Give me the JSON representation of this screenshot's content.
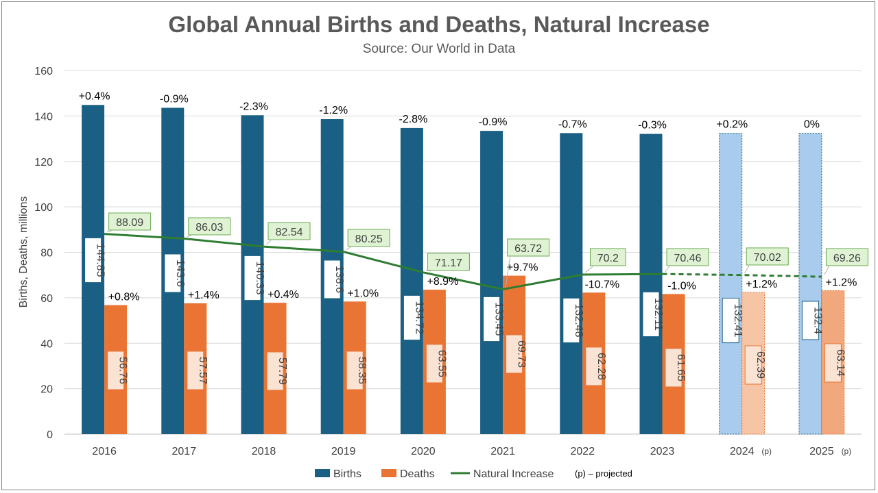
{
  "chart_data": {
    "type": "bar",
    "title": "Global Annual Births and Deaths, Natural Increase",
    "subtitle": "Source: Our World in Data",
    "ylabel": "Births, Deaths, millions",
    "xlabel": "",
    "ylim": [
      0,
      160
    ],
    "yticks": [
      0,
      20,
      40,
      60,
      80,
      100,
      120,
      140,
      160
    ],
    "grid": true,
    "legend_position": "bottom",
    "categories": [
      "2016",
      "2017",
      "2018",
      "2019",
      "2020",
      "2021",
      "2022",
      "2023",
      "2024",
      "2025"
    ],
    "projected": [
      false,
      false,
      false,
      false,
      false,
      false,
      false,
      false,
      true,
      true
    ],
    "projected_suffix": "(p)",
    "series": [
      {
        "name": "Births",
        "type": "bar",
        "color": "#1a5f84",
        "projected_color": "#a9cbee",
        "values": [
          144.85,
          143.6,
          140.33,
          138.6,
          134.72,
          133.45,
          132.48,
          132.11,
          132.41,
          132.4
        ],
        "value_labels": [
          "144.85",
          "143.6",
          "140.33",
          "138.6",
          "134.72",
          "133.45",
          "132.48",
          "132.11",
          "132.41",
          "132.4"
        ],
        "change_labels": [
          "+0.4%",
          "-0.9%",
          "-2.3%",
          "-1.2%",
          "-2.8%",
          "-0.9%",
          "-0.7%",
          "-0.3%",
          "+0.2%",
          "0%"
        ]
      },
      {
        "name": "Deaths",
        "type": "bar",
        "color": "#ea7433",
        "projected_colors": [
          "#f6c5a5",
          "#f0a87c"
        ],
        "values": [
          56.76,
          57.57,
          57.79,
          58.35,
          63.55,
          69.73,
          62.28,
          61.65,
          62.39,
          63.14
        ],
        "value_labels": [
          "56.76",
          "57.57",
          "57.79",
          "58.35",
          "63.55",
          "69.73",
          "62.28",
          "61.65",
          "62.39",
          "63.14"
        ],
        "change_labels": [
          "+0.8%",
          "+1.4%",
          "+0.4%",
          "+1.0%",
          "+8.9%",
          "+9.7%",
          "-10.7%",
          "-1.0%",
          "+1.2%",
          "+1.2%"
        ]
      },
      {
        "name": "Natural Increase",
        "type": "line",
        "color": "#2e7d32",
        "values": [
          88.09,
          86.03,
          82.54,
          80.25,
          71.17,
          63.72,
          70.2,
          70.46,
          70.02,
          69.26
        ],
        "value_labels": [
          "88.09",
          "86.03",
          "82.54",
          "80.25",
          "71.17",
          "63.72",
          "70.2",
          "70.46",
          "70.02",
          "69.26"
        ]
      }
    ],
    "legend_note": "(p) – projected"
  }
}
